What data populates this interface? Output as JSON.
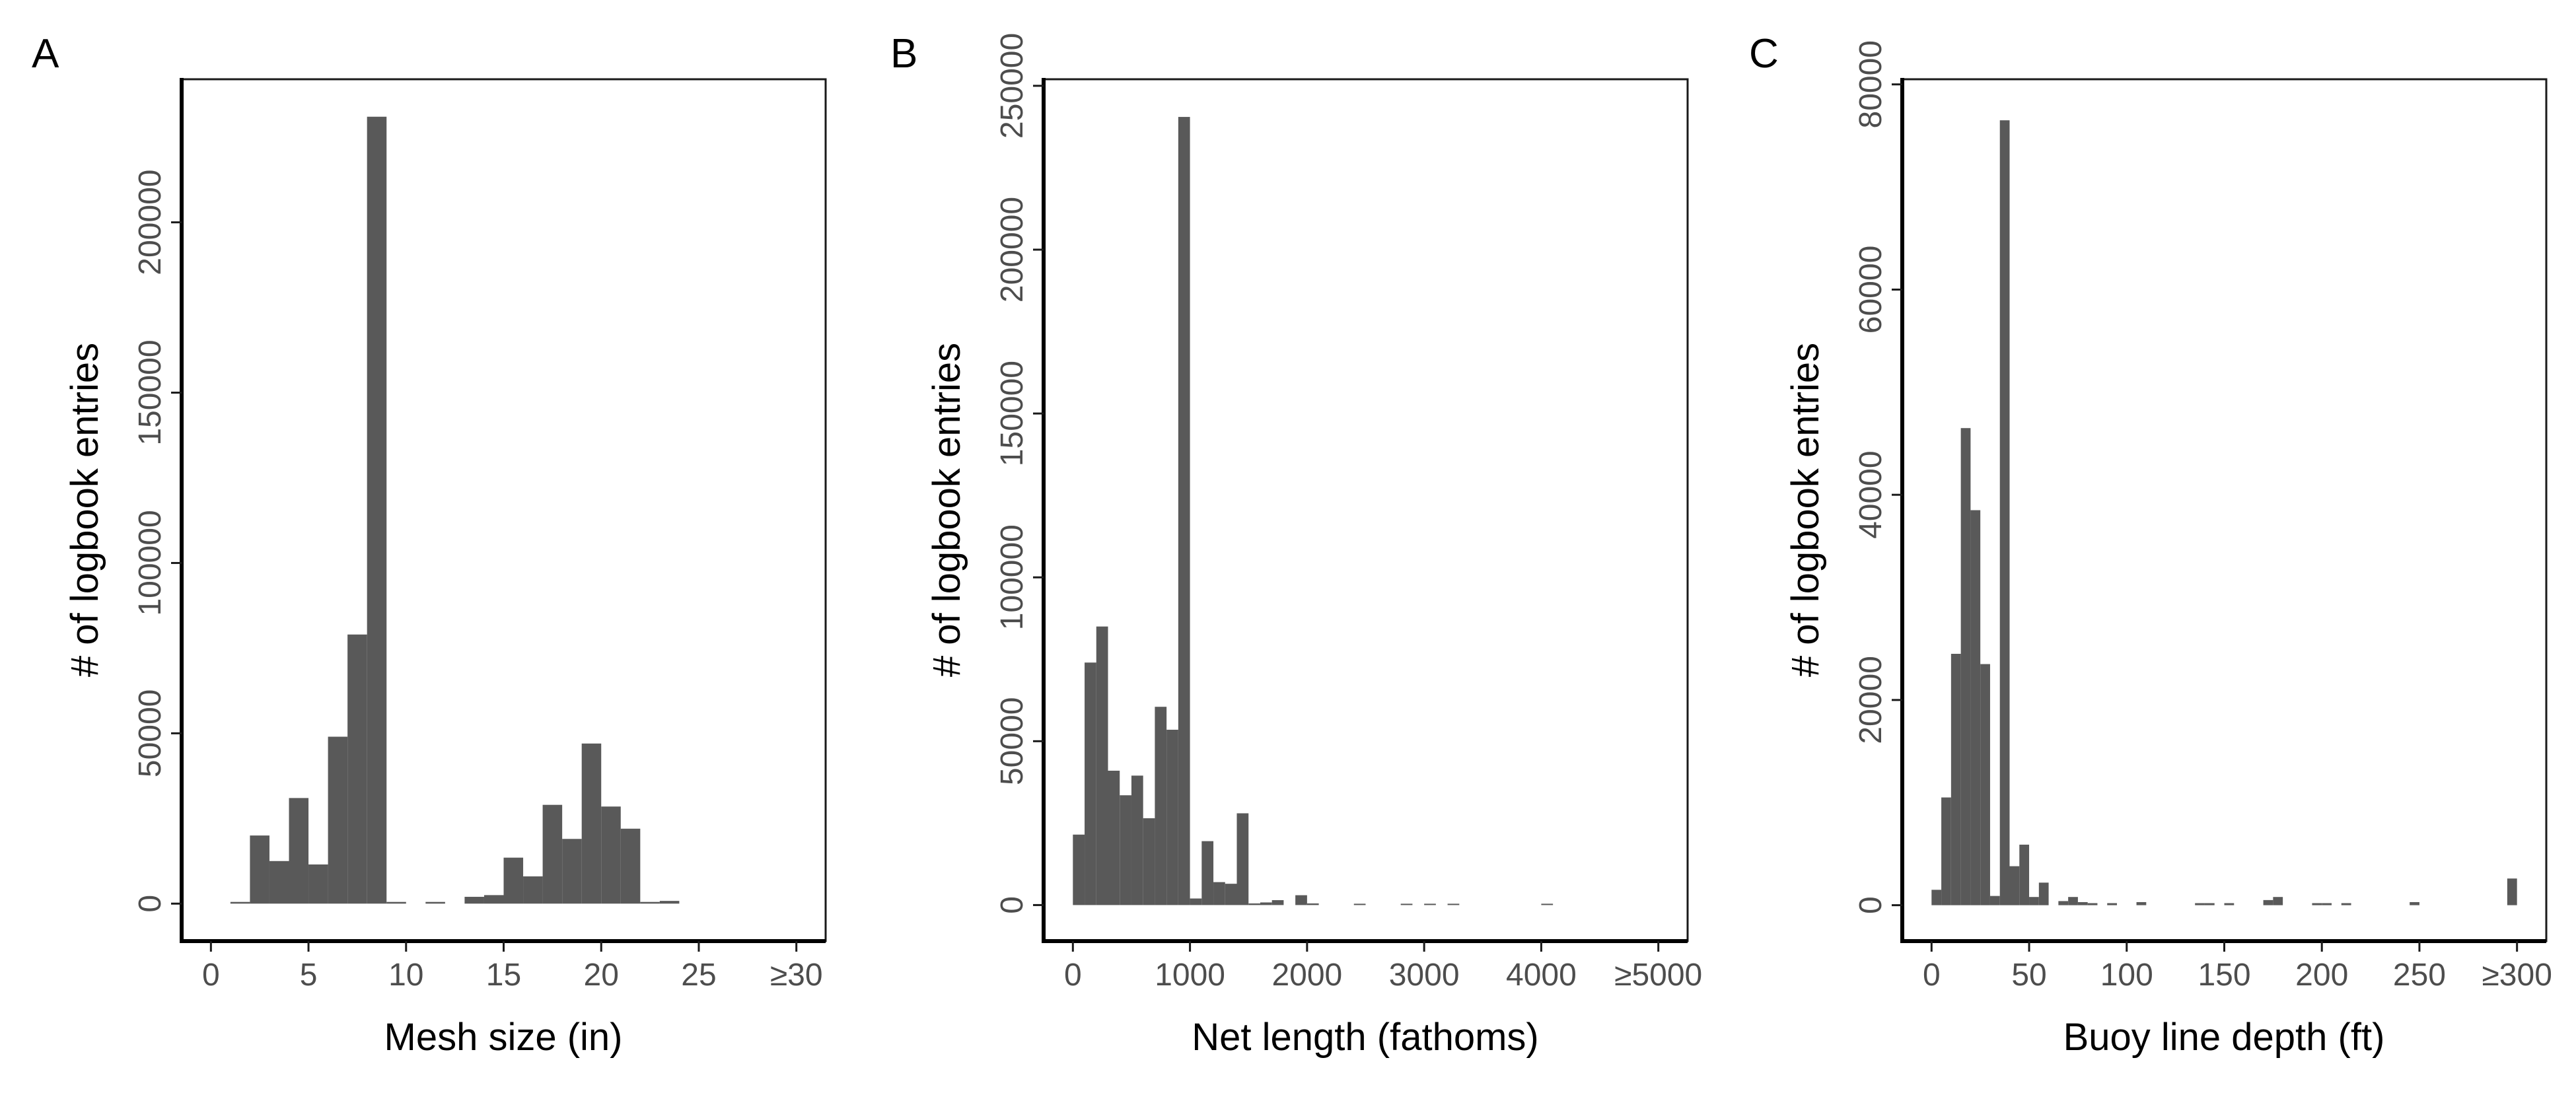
{
  "colors": {
    "bar": "#595959",
    "axis": "#000000",
    "tick_text": "#4d4d4d"
  },
  "chart_data": [
    {
      "type": "bar",
      "panel_label": "A",
      "xlabel": "Mesh size (in)",
      "ylabel": "# of logbook entries",
      "xlim": [
        -1.5,
        31.5
      ],
      "ylim": [
        -11000,
        242000
      ],
      "x_ticks": [
        0,
        5,
        10,
        15,
        20,
        25,
        30
      ],
      "x_tick_labels": [
        "0",
        "5",
        "10",
        "15",
        "20",
        "25",
        "≥30"
      ],
      "y_ticks": [
        0,
        50000,
        100000,
        150000,
        200000
      ],
      "y_tick_labels": [
        "0",
        "50000",
        "100000",
        "150000",
        "200000"
      ],
      "bin_width": 1,
      "bins": [
        [
          1,
          500
        ],
        [
          2,
          20000
        ],
        [
          3,
          12500
        ],
        [
          4,
          31000
        ],
        [
          5,
          11500
        ],
        [
          6,
          49000
        ],
        [
          7,
          79000
        ],
        [
          8,
          231000
        ],
        [
          9,
          500
        ],
        [
          11,
          500
        ],
        [
          13,
          2000
        ],
        [
          14,
          2500
        ],
        [
          15,
          13500
        ],
        [
          16,
          8000
        ],
        [
          17,
          29000
        ],
        [
          18,
          19000
        ],
        [
          19,
          47000
        ],
        [
          20,
          28500
        ],
        [
          21,
          22000
        ],
        [
          22,
          500
        ],
        [
          23,
          800
        ]
      ]
    },
    {
      "type": "bar",
      "panel_label": "B",
      "xlabel": "Net length (fathoms)",
      "ylabel": "# of logbook entries",
      "xlim": [
        -250,
        5250
      ],
      "ylim": [
        -11000,
        252000
      ],
      "x_ticks": [
        0,
        1000,
        2000,
        3000,
        4000,
        5000
      ],
      "x_tick_labels": [
        "0",
        "1000",
        "2000",
        "3000",
        "4000",
        "≥5000"
      ],
      "y_ticks": [
        0,
        50000,
        100000,
        150000,
        200000,
        250000
      ],
      "y_tick_labels": [
        "0",
        "50000",
        "100000",
        "150000",
        "200000",
        "250000"
      ],
      "bin_width": 100,
      "bins": [
        [
          0,
          21500
        ],
        [
          100,
          74000
        ],
        [
          200,
          85000
        ],
        [
          300,
          41000
        ],
        [
          400,
          33500
        ],
        [
          500,
          39500
        ],
        [
          600,
          26500
        ],
        [
          700,
          60500
        ],
        [
          800,
          53500
        ],
        [
          900,
          240500
        ],
        [
          1000,
          2000
        ],
        [
          1100,
          19500
        ],
        [
          1200,
          7000
        ],
        [
          1300,
          6500
        ],
        [
          1400,
          28000
        ],
        [
          1500,
          500
        ],
        [
          1600,
          800
        ],
        [
          1700,
          1500
        ],
        [
          1900,
          3000
        ],
        [
          2000,
          500
        ],
        [
          2400,
          300
        ],
        [
          2800,
          300
        ],
        [
          3000,
          400
        ],
        [
          3200,
          300
        ],
        [
          4000,
          400
        ]
      ]
    },
    {
      "type": "bar",
      "panel_label": "C",
      "xlabel": "Buoy line depth (ft)",
      "ylabel": "# of logbook entries",
      "xlim": [
        -15,
        315
      ],
      "ylim": [
        -3500,
        80500
      ],
      "x_ticks": [
        0,
        50,
        100,
        150,
        200,
        250,
        300
      ],
      "x_tick_labels": [
        "0",
        "50",
        "100",
        "150",
        "200",
        "250",
        "≥300"
      ],
      "y_ticks": [
        0,
        20000,
        40000,
        60000,
        80000
      ],
      "y_tick_labels": [
        "0",
        "20000",
        "40000",
        "60000",
        "80000"
      ],
      "bin_width": 5,
      "bins": [
        [
          0,
          1500
        ],
        [
          5,
          10500
        ],
        [
          10,
          24500
        ],
        [
          15,
          46500
        ],
        [
          20,
          38500
        ],
        [
          25,
          23500
        ],
        [
          30,
          900
        ],
        [
          35,
          76500
        ],
        [
          40,
          3800
        ],
        [
          45,
          5900
        ],
        [
          50,
          800
        ],
        [
          55,
          2200
        ],
        [
          65,
          400
        ],
        [
          70,
          800
        ],
        [
          75,
          300
        ],
        [
          80,
          200
        ],
        [
          90,
          200
        ],
        [
          105,
          300
        ],
        [
          135,
          200
        ],
        [
          140,
          200
        ],
        [
          150,
          200
        ],
        [
          170,
          500
        ],
        [
          175,
          800
        ],
        [
          195,
          200
        ],
        [
          200,
          200
        ],
        [
          210,
          200
        ],
        [
          245,
          300
        ],
        [
          295,
          2600
        ]
      ]
    }
  ]
}
